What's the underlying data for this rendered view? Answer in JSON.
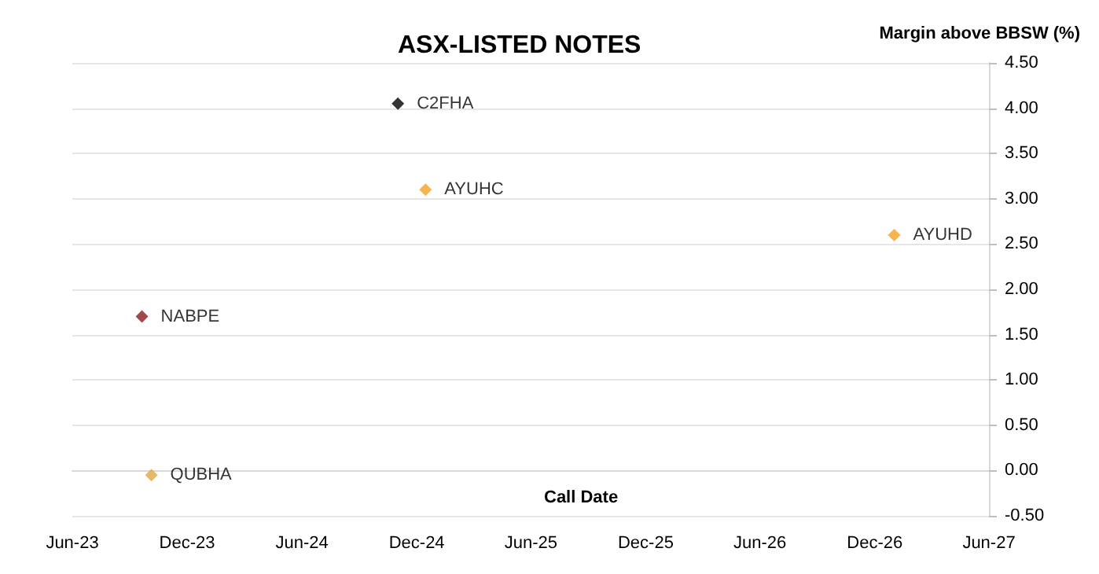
{
  "chart_data": {
    "type": "scatter",
    "title": "ASX-LISTED NOTES",
    "xlabel": "Call Date",
    "ylabel": "Margin above BBSW (%)",
    "series": [
      {
        "name": "NABPE",
        "color": "#8b1a1a",
        "x": [
          "2023-09-20"
        ],
        "values": [
          1.7
        ]
      },
      {
        "name": "QUBHA",
        "color": "#e0a840",
        "x": [
          "2023-10-05"
        ],
        "values": [
          -0.05
        ]
      },
      {
        "name": "C2FHA",
        "color": "#000000",
        "x": [
          "2024-11-01"
        ],
        "values": [
          4.05
        ]
      },
      {
        "name": "AYUHC",
        "color": "#f5a020",
        "x": [
          "2024-12-15"
        ],
        "values": [
          3.1
        ]
      },
      {
        "name": "AYUHD",
        "color": "#f5a020",
        "x": [
          "2027-01-01"
        ],
        "values": [
          2.6
        ]
      }
    ],
    "xlim": [
      "2023-06-01",
      "2027-06-01"
    ],
    "xticks": [
      {
        "value": "2023-06-01",
        "label": "Jun-23"
      },
      {
        "value": "2023-12-01",
        "label": "Dec-23"
      },
      {
        "value": "2024-06-01",
        "label": "Jun-24"
      },
      {
        "value": "2024-12-01",
        "label": "Dec-24"
      },
      {
        "value": "2025-06-01",
        "label": "Jun-25"
      },
      {
        "value": "2025-12-01",
        "label": "Dec-25"
      },
      {
        "value": "2026-06-01",
        "label": "Jun-26"
      },
      {
        "value": "2026-12-01",
        "label": "Dec-26"
      },
      {
        "value": "2027-06-01",
        "label": "Jun-27"
      }
    ],
    "ylim": [
      -0.5,
      4.5
    ],
    "yticks": [
      {
        "value": -0.5,
        "label": "-0.50"
      },
      {
        "value": 0,
        "label": "0.00"
      },
      {
        "value": 0.5,
        "label": "0.50"
      },
      {
        "value": 1,
        "label": "1.00"
      },
      {
        "value": 1.5,
        "label": "1.50"
      },
      {
        "value": 2,
        "label": "2.00"
      },
      {
        "value": 2.5,
        "label": "2.50"
      },
      {
        "value": 3,
        "label": "3.00"
      },
      {
        "value": 3.5,
        "label": "3.50"
      },
      {
        "value": 4,
        "label": "4.00"
      },
      {
        "value": 4.5,
        "label": "4.50"
      }
    ],
    "grid": "y",
    "legend": false,
    "marker": "diamond"
  }
}
